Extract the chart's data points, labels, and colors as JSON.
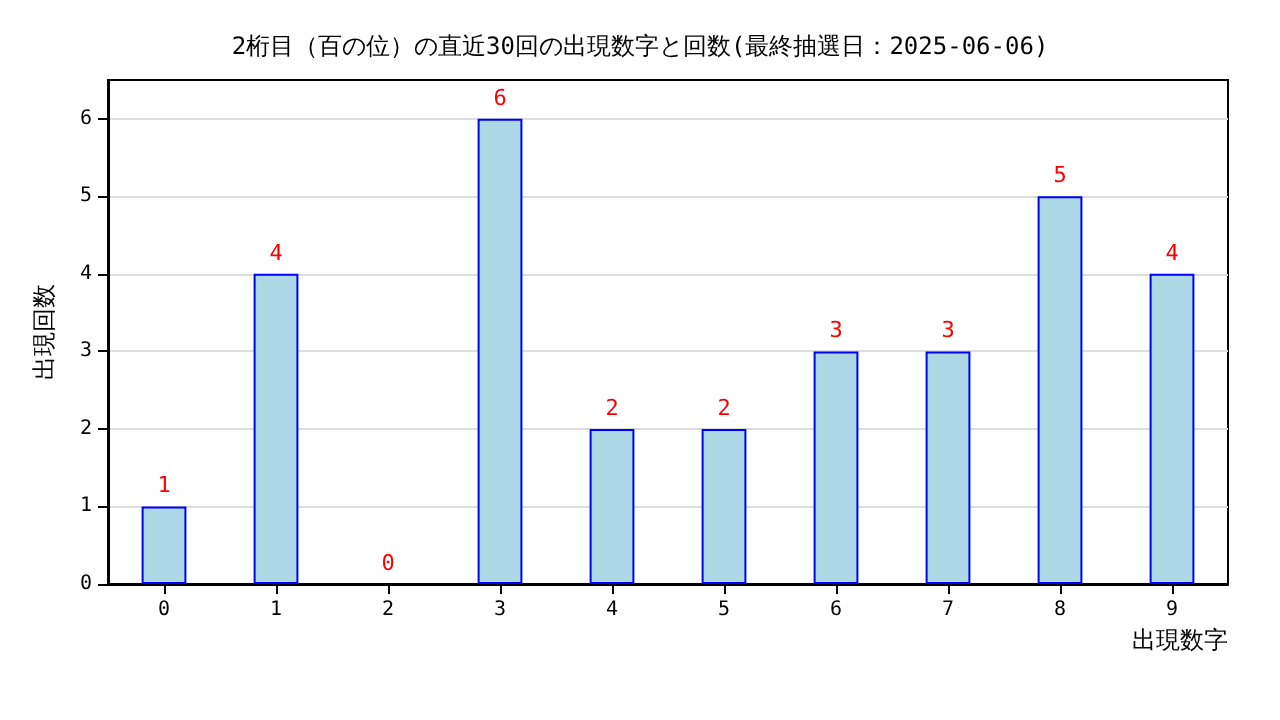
{
  "chart_data": {
    "type": "bar",
    "title": "2桁目（百の位）の直近30回の出現数字と回数(最終抽選日：2025-06-06)",
    "xlabel": "出現数字",
    "ylabel": "出現回数",
    "categories": [
      "0",
      "1",
      "2",
      "3",
      "4",
      "5",
      "6",
      "7",
      "8",
      "9"
    ],
    "values": [
      1,
      4,
      0,
      6,
      2,
      2,
      3,
      3,
      5,
      4
    ],
    "color": "#add8e6",
    "ylim": [
      0,
      6.5
    ],
    "yticks": [
      0,
      1,
      2,
      3,
      4,
      5,
      6
    ],
    "grid": "y",
    "data_labels": true
  }
}
